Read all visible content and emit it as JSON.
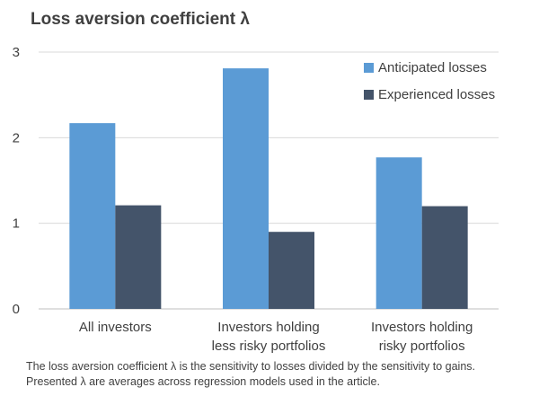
{
  "chart_data": {
    "type": "bar",
    "title": "Loss aversion coefficient λ",
    "categories": [
      [
        "All investors"
      ],
      [
        "Investors holding",
        "less risky portfolios"
      ],
      [
        "Investors holding",
        "risky portfolios"
      ]
    ],
    "series": [
      {
        "name": "Anticipated losses",
        "color": "#5b9bd5",
        "values": [
          2.17,
          2.81,
          1.77
        ]
      },
      {
        "name": "Experienced losses",
        "color": "#44546a",
        "values": [
          1.21,
          0.9,
          1.2
        ]
      }
    ],
    "ylim": [
      0,
      3
    ],
    "yticks": [
      "0",
      "1",
      "2",
      "3"
    ],
    "grid": true,
    "legend_position": "top-right"
  },
  "note": [
    "The loss aversion coefficient λ is the sensitivity to losses divided by the sensitivity to gains.",
    "Presented λ are averages across regression models used in the article."
  ]
}
